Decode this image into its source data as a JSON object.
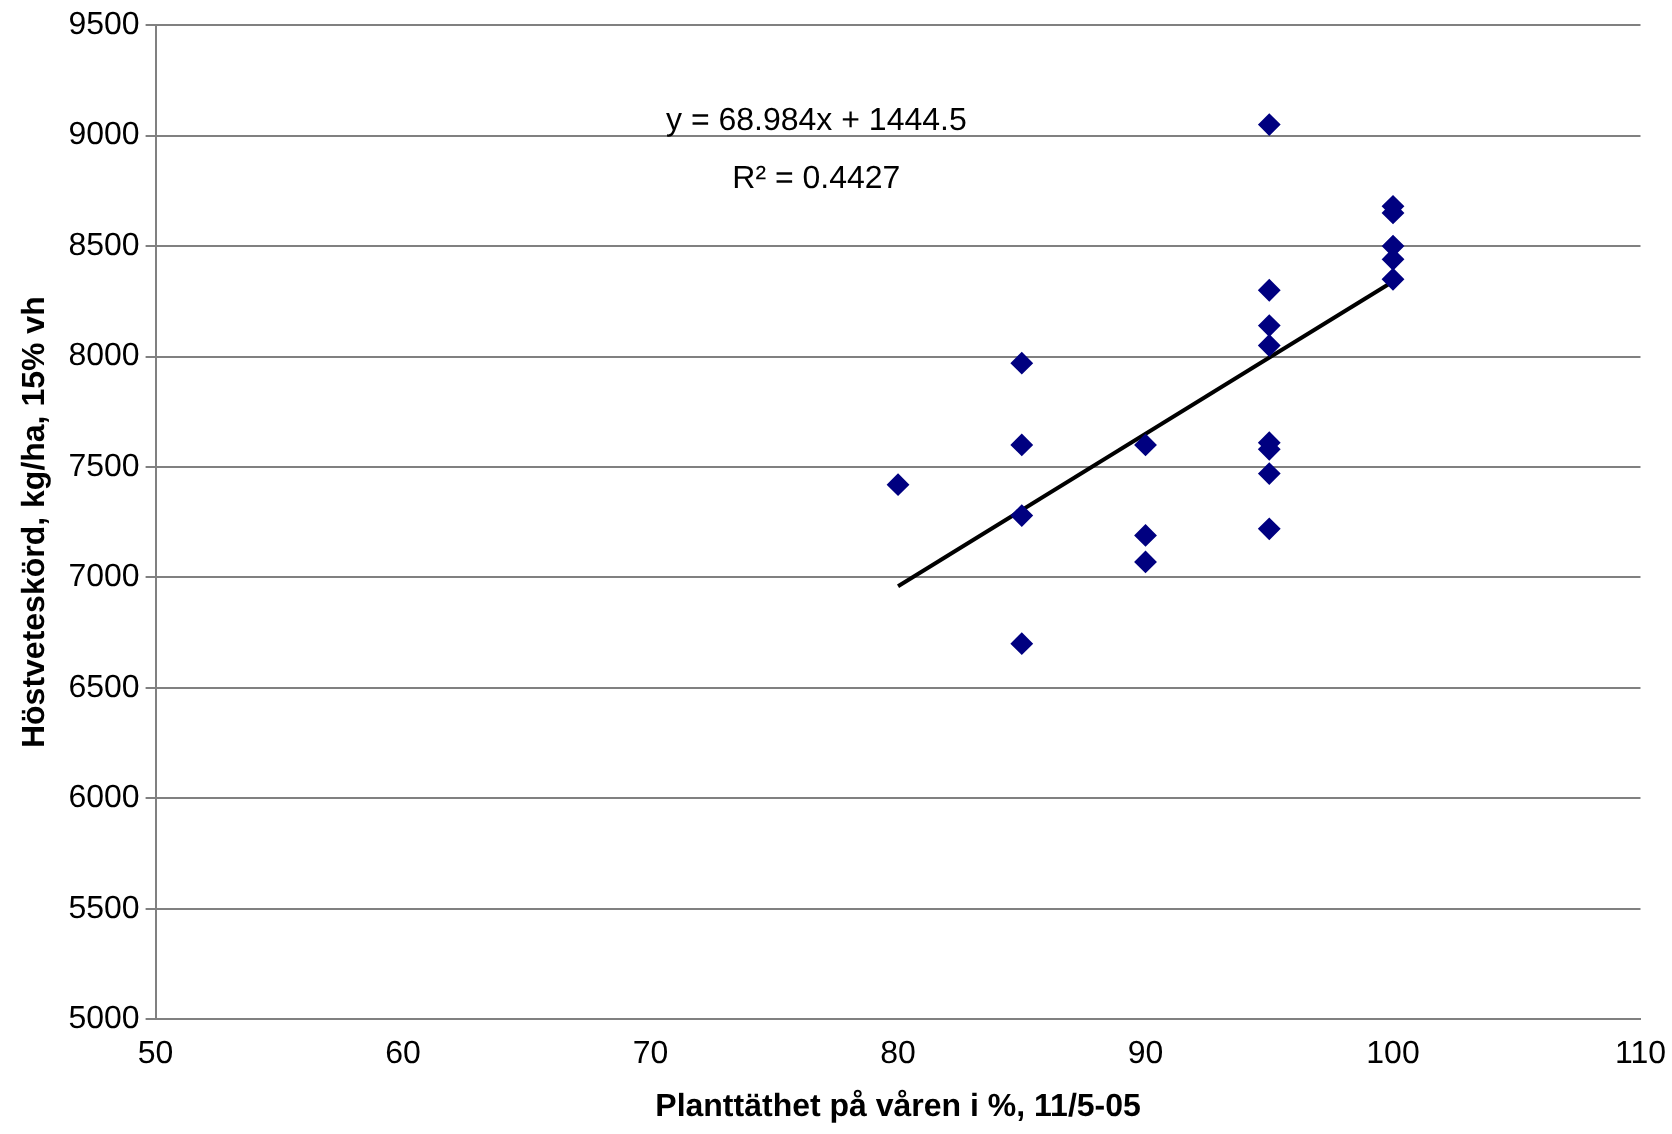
{
  "chart_data": {
    "type": "scatter",
    "xlabel": "Planttäthet på våren i %, 11/5-05",
    "ylabel": "Höstveteskörd, kg/ha, 15% vh",
    "xlim": [
      50,
      110
    ],
    "xticks": [
      50,
      60,
      70,
      80,
      90,
      100,
      110
    ],
    "ylim": [
      5000,
      9500
    ],
    "yticks": [
      5000,
      5500,
      6000,
      6500,
      7000,
      7500,
      8000,
      8500,
      9000,
      9500
    ],
    "grid": "y",
    "legend": false,
    "marker": "diamond",
    "series": [
      {
        "type": "scatter",
        "color": "#000080",
        "x": [
          80,
          85,
          85,
          85,
          85,
          90,
          90,
          90,
          95,
          95,
          95,
          95,
          95,
          95,
          95,
          95,
          100,
          100,
          100,
          100,
          100
        ],
        "values": [
          7420,
          7970,
          7600,
          7280,
          6700,
          7600,
          7190,
          7070,
          9050,
          8300,
          8140,
          8050,
          7610,
          7580,
          7470,
          7220,
          8680,
          8650,
          8500,
          8440,
          8350
        ]
      },
      {
        "type": "line",
        "color": "#000000",
        "marker": "none",
        "x": [
          80,
          100
        ],
        "values": [
          6960,
          8340
        ]
      }
    ],
    "annotations": [
      "y = 68.984x + 1444.5",
      "R² = 0.4427"
    ]
  }
}
